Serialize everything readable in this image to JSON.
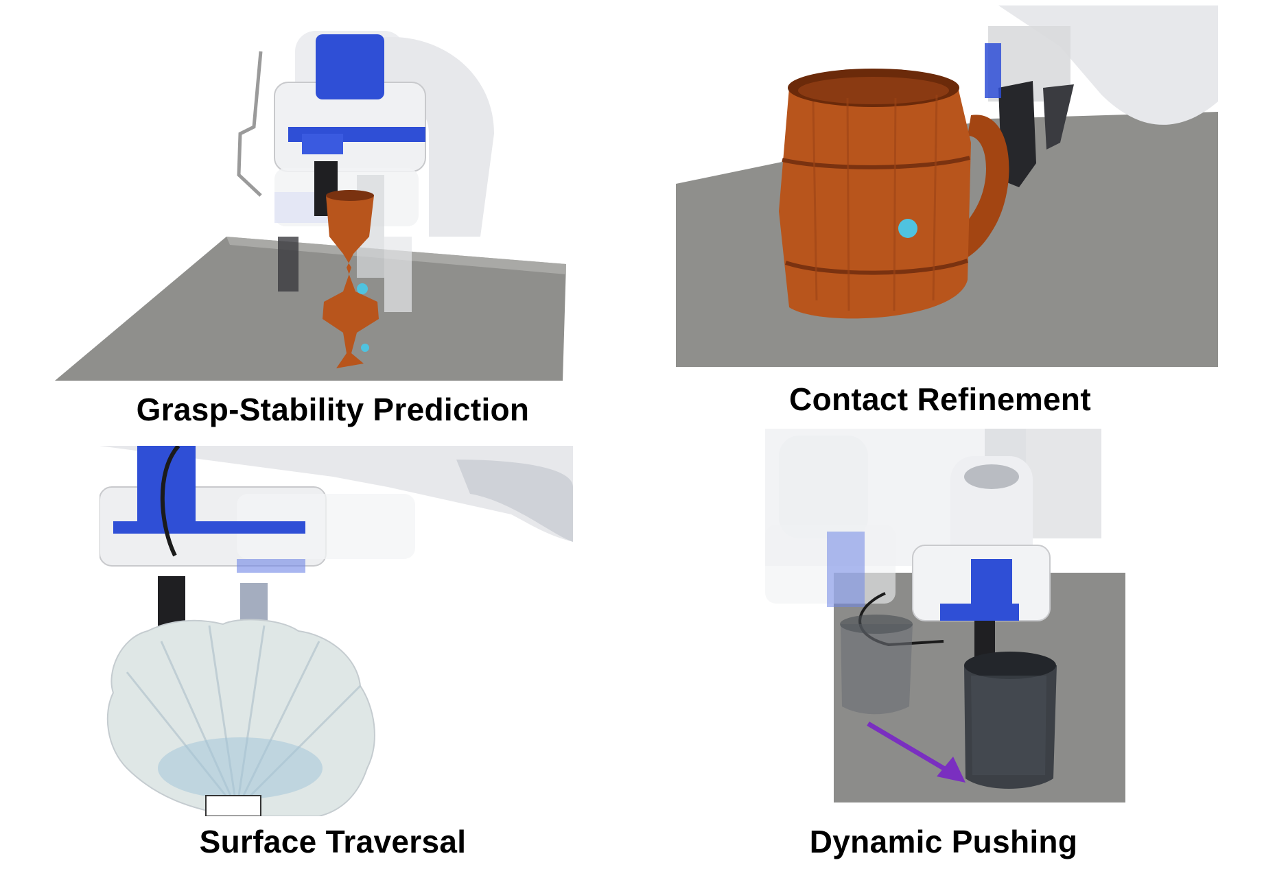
{
  "panels": [
    {
      "id": "grasp-stability",
      "caption": "Grasp-Stability Prediction"
    },
    {
      "id": "contact-refinement",
      "caption": "Contact Refinement"
    },
    {
      "id": "surface-traversal",
      "caption": "Surface Traversal"
    },
    {
      "id": "dynamic-pushing",
      "caption": "Dynamic Pushing"
    }
  ],
  "colors": {
    "table_gray": "#8f8f8c",
    "gripper_blue": "#2f4fd6",
    "robot_white": "#ecedf0",
    "wood": "#b8551c",
    "pot_gray": "#3c4046",
    "arrow_purple": "#7a2fc0"
  }
}
